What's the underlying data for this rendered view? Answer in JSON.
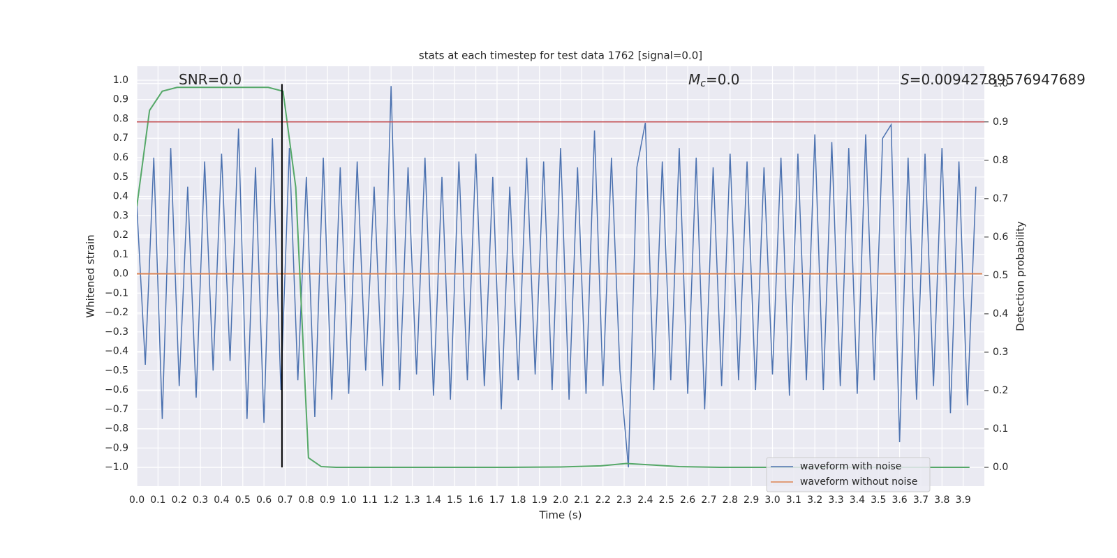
{
  "chart_data": {
    "type": "line",
    "title": "stats at each timestep for test data 1762 [signal=0.0]",
    "xlabel": "Time (s)",
    "ylabel": "Whitened strain",
    "y2label": "Detection probability",
    "annotations": [
      {
        "text": "SNR=0.0"
      },
      {
        "symbol": "M",
        "subscript": "c",
        "text": "=0.0"
      },
      {
        "symbol": "S",
        "text": "=0.00942789576947689"
      }
    ],
    "xlim": [
      0,
      4.0
    ],
    "ylim": [
      -1.097,
      1.072
    ],
    "y2lim": [
      -0.049,
      1.045
    ],
    "grid": true,
    "legend": "lower right",
    "xticks": [
      {
        "value": 0,
        "label": "0.0"
      },
      0.1,
      0.2,
      0.3,
      0.4,
      0.5,
      0.6,
      0.7,
      0.8,
      0.9,
      {
        "value": 1,
        "label": "1.0"
      },
      1.1,
      1.2,
      1.3,
      1.4,
      1.5,
      1.6,
      1.7,
      1.8,
      1.9,
      {
        "value": 2,
        "label": "2.0"
      },
      2.1,
      2.2,
      2.3,
      2.4,
      2.5,
      2.6,
      2.7,
      2.8,
      2.9,
      {
        "value": 3,
        "label": "3.0"
      },
      3.1,
      3.2,
      3.3,
      3.4,
      3.5,
      3.6,
      3.7,
      3.8,
      3.9
    ],
    "yticks": [
      {
        "value": -1,
        "label": "−1.0"
      },
      {
        "value": -0.9,
        "label": "−0.9"
      },
      {
        "value": -0.8,
        "label": "−0.8"
      },
      {
        "value": -0.7,
        "label": "−0.7"
      },
      {
        "value": -0.6,
        "label": "−0.6"
      },
      {
        "value": -0.5,
        "label": "−0.5"
      },
      {
        "value": -0.4,
        "label": "−0.4"
      },
      {
        "value": -0.3,
        "label": "−0.3"
      },
      {
        "value": -0.2,
        "label": "−0.2"
      },
      {
        "value": -0.1,
        "label": "−0.1"
      },
      {
        "value": 0,
        "label": "0.0"
      },
      0.1,
      0.2,
      0.3,
      0.4,
      0.5,
      0.6,
      0.7,
      0.8,
      0.9,
      {
        "value": 1,
        "label": "1.0"
      }
    ],
    "y2ticks": [
      {
        "value": 0,
        "label": "0.0"
      },
      0.1,
      0.2,
      0.3,
      0.4,
      0.5,
      0.6,
      0.7,
      0.8,
      0.9,
      {
        "value": 1,
        "label": "1.0"
      }
    ],
    "series": [
      {
        "name": "waveform with noise",
        "color": "#4c72b0",
        "x": [
          0,
          0.04,
          0.08,
          0.12,
          0.16,
          0.2,
          0.24,
          0.28,
          0.32,
          0.36,
          0.4,
          0.44,
          0.48,
          0.52,
          0.56,
          0.6,
          0.64,
          0.68,
          0.72,
          0.76,
          0.8,
          0.84,
          0.88,
          0.92,
          0.96,
          1.0,
          1.04,
          1.08,
          1.12,
          1.16,
          1.2,
          1.24,
          1.28,
          1.32,
          1.36,
          1.4,
          1.44,
          1.48,
          1.52,
          1.56,
          1.6,
          1.64,
          1.68,
          1.72,
          1.76,
          1.8,
          1.84,
          1.88,
          1.92,
          1.96,
          2.0,
          2.04,
          2.08,
          2.12,
          2.16,
          2.2,
          2.24,
          2.28,
          2.32,
          2.36,
          2.4,
          2.44,
          2.48,
          2.52,
          2.56,
          2.6,
          2.64,
          2.68,
          2.72,
          2.76,
          2.8,
          2.84,
          2.88,
          2.92,
          2.96,
          3.0,
          3.04,
          3.08,
          3.12,
          3.16,
          3.2,
          3.24,
          3.28,
          3.32,
          3.36,
          3.4,
          3.44,
          3.48,
          3.52,
          3.56,
          3.6,
          3.64,
          3.68,
          3.72,
          3.76,
          3.8,
          3.84,
          3.88,
          3.92,
          3.96
        ],
        "values": [
          0.35,
          -0.47,
          0.6,
          -0.75,
          0.65,
          -0.58,
          0.45,
          -0.64,
          0.58,
          -0.5,
          0.62,
          -0.45,
          0.75,
          -0.75,
          0.55,
          -0.77,
          0.7,
          -0.6,
          0.65,
          -0.55,
          0.5,
          -0.74,
          0.6,
          -0.65,
          0.55,
          -0.62,
          0.58,
          -0.5,
          0.45,
          -0.58,
          0.97,
          -0.6,
          0.55,
          -0.52,
          0.6,
          -0.63,
          0.5,
          -0.65,
          0.58,
          -0.55,
          0.62,
          -0.58,
          0.5,
          -0.7,
          0.45,
          -0.55,
          0.6,
          -0.52,
          0.58,
          -0.6,
          0.65,
          -0.65,
          0.55,
          -0.62,
          0.74,
          -0.58,
          0.6,
          -0.5,
          -1.0,
          0.55,
          0.78,
          -0.6,
          0.58,
          -0.55,
          0.65,
          -0.62,
          0.6,
          -0.7,
          0.55,
          -0.58,
          0.62,
          -0.55,
          0.58,
          -0.6,
          0.55,
          -0.52,
          0.6,
          -0.63,
          0.62,
          -0.55,
          0.72,
          -0.6,
          0.68,
          -0.58,
          0.65,
          -0.62,
          0.72,
          -0.55,
          0.7,
          0.77,
          -0.87,
          0.6,
          -0.65,
          0.62,
          -0.58,
          0.65,
          -0.72,
          0.58,
          -0.68,
          0.45
        ]
      },
      {
        "name": "waveform without noise",
        "color": "#dd8452",
        "x": [
          0,
          3.99
        ],
        "values": [
          0,
          0
        ]
      },
      {
        "color": "#55a868",
        "axis": "y2",
        "x": [
          0.0,
          0.06,
          0.12,
          0.19,
          0.25,
          0.31,
          0.37,
          0.44,
          0.5,
          0.56,
          0.62,
          0.69,
          0.75,
          0.81,
          0.87,
          0.94,
          1.0,
          1.12,
          1.25,
          1.5,
          1.75,
          2.0,
          2.19,
          2.31,
          2.44,
          2.56,
          2.75,
          3.0,
          3.5,
          3.93
        ],
        "values": [
          0.68,
          0.93,
          0.98,
          0.99,
          0.99,
          0.99,
          0.99,
          0.99,
          0.99,
          0.99,
          0.99,
          0.98,
          0.73,
          0.025,
          0.002,
          0.0,
          0.0,
          0.0,
          0.0,
          0.0,
          0.0,
          0.001,
          0.004,
          0.01,
          0.006,
          0.002,
          0.0,
          0.0,
          0.0,
          0.0
        ]
      }
    ],
    "hlines": [
      {
        "axis": "y2",
        "value": 0.9,
        "color": "#c44e52"
      }
    ],
    "vlines": [
      {
        "x": 0.685,
        "y": [
          -1.0,
          0.98
        ],
        "color": "#000000"
      }
    ]
  }
}
